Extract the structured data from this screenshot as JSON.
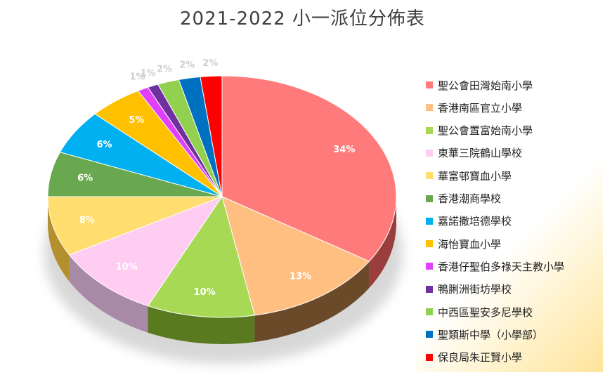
{
  "chart_data": {
    "type": "pie",
    "title": "2021-2022 小一派位分佈表",
    "legend_position": "right",
    "slices": [
      {
        "name": "聖公會田灣始南小學",
        "value": 34,
        "label": "34%",
        "color": "#ff7b7b",
        "side": "#9a3d3d"
      },
      {
        "name": "香港南區官立小學",
        "value": 13,
        "label": "13%",
        "color": "#ffbf80",
        "side": "#6b4a2a"
      },
      {
        "name": "聖公會置富始南小學",
        "value": 10,
        "label": "10%",
        "color": "#a8d955",
        "side": "#5a7a20"
      },
      {
        "name": "東華三院鶴山學校",
        "value": 10,
        "label": "10%",
        "color": "#ffccf2",
        "side": "#a88aa6"
      },
      {
        "name": "華富邨寶血小學",
        "value": 8,
        "label": "8%",
        "color": "#ffdd6e",
        "side": "#b38f2e"
      },
      {
        "name": "香港潮商學校",
        "value": 6,
        "label": "6%",
        "color": "#6aa84f",
        "side": "#3d6a2c"
      },
      {
        "name": "嘉諾撒培德學校",
        "value": 6,
        "label": "6%",
        "color": "#00b0f0",
        "side": "#006a90"
      },
      {
        "name": "海怡寶血小學",
        "value": 5,
        "label": "5%",
        "color": "#ffc000",
        "side": "#8a6800"
      },
      {
        "name": "香港仔聖伯多祿天主教小學",
        "value": 1,
        "label": "1%",
        "color": "#e040fb",
        "side": "#8a2596"
      },
      {
        "name": "鴨脷洲街坊學校",
        "value": 1,
        "label": "1%",
        "color": "#7030a0",
        "side": "#3f1a5c"
      },
      {
        "name": "中西區聖安多尼學校",
        "value": 2,
        "label": "2%",
        "color": "#92d050",
        "side": "#557a2e"
      },
      {
        "name": "聖類斯中學（小學部）",
        "value": 2,
        "label": "2%",
        "color": "#0070c0",
        "side": "#003f6c"
      },
      {
        "name": "保良局朱正賢小學",
        "value": 2,
        "label": "2%",
        "color": "#ff0000",
        "side": "#8c0000"
      }
    ]
  }
}
